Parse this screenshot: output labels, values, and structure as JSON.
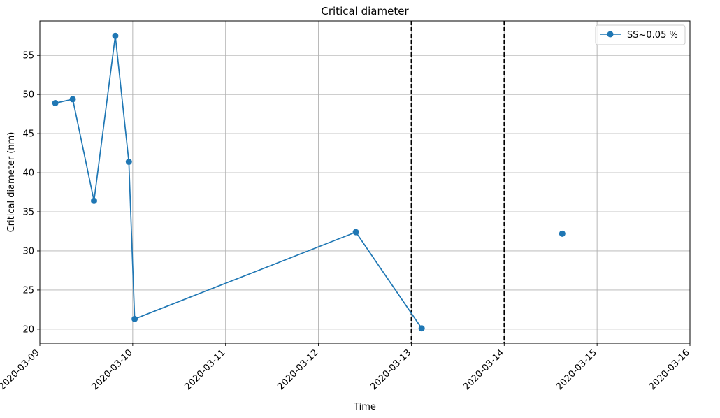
{
  "chart_data": {
    "type": "line",
    "title": "Critical diameter",
    "xlabel": "Time",
    "ylabel": "Critical diameter (nm)",
    "x_is_date": true,
    "xlim": [
      "2020-03-09",
      "2020-03-16"
    ],
    "ylim": [
      18.2,
      59.4
    ],
    "xticks": [
      "2020-03-09",
      "2020-03-10",
      "2020-03-11",
      "2020-03-12",
      "2020-03-13",
      "2020-03-14",
      "2020-03-15",
      "2020-03-16"
    ],
    "yticks": [
      20,
      25,
      30,
      35,
      40,
      45,
      50,
      55
    ],
    "grid": true,
    "legend_position": "top-right",
    "series": [
      {
        "name": "SS~0.05 %",
        "color": "#1f77b4",
        "marker": "circle",
        "points": [
          {
            "x": "2020-03-09 04:00",
            "y": 48.9
          },
          {
            "x": "2020-03-09 08:30",
            "y": 49.4
          },
          {
            "x": "2020-03-09 14:00",
            "y": 36.4
          },
          {
            "x": "2020-03-09 19:30",
            "y": 57.5
          },
          {
            "x": "2020-03-09 23:00",
            "y": 41.4
          },
          {
            "x": "2020-03-10 00:30",
            "y": 21.3
          },
          {
            "x": "2020-03-12 09:40",
            "y": 32.4
          },
          {
            "x": "2020-03-13 02:40",
            "y": 20.1
          },
          {
            "x": "2020-03-14 15:00",
            "y": 32.2
          }
        ],
        "connected_segments": [
          [
            0,
            7
          ]
        ]
      }
    ],
    "vertical_lines": [
      {
        "x": "2020-03-13 00:00",
        "style": "dashed",
        "color": "#000000"
      },
      {
        "x": "2020-03-14 00:00",
        "style": "dashed",
        "color": "#000000"
      }
    ]
  }
}
